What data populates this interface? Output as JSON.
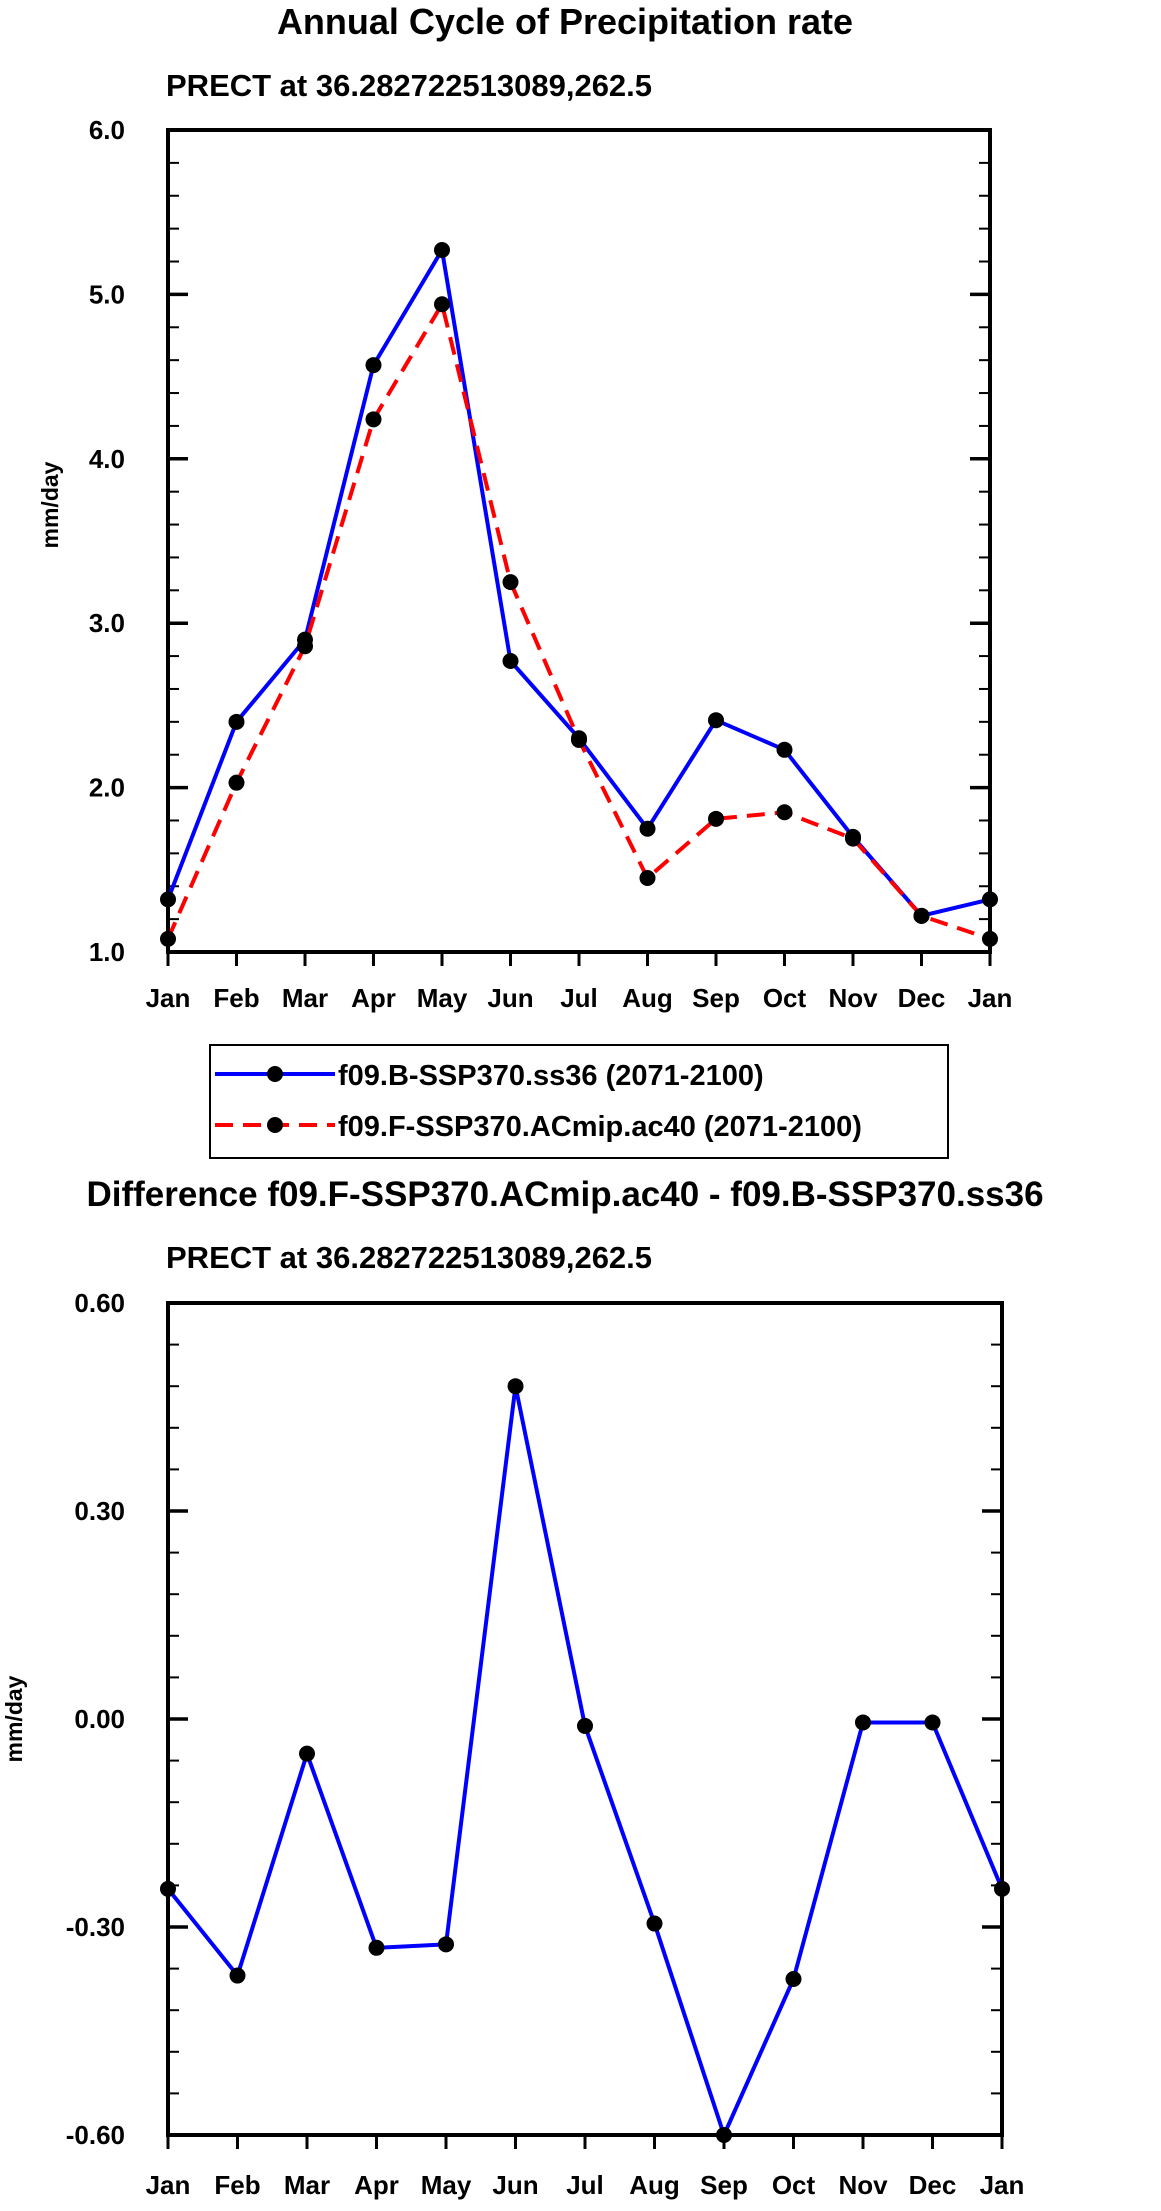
{
  "chart_data": [
    {
      "type": "line",
      "title": "Annual Cycle of Precipitation rate",
      "subtitle": "PRECT at 36.282722513089,262.5",
      "xlabel": "",
      "ylabel": "mm/day",
      "categories": [
        "Jan",
        "Feb",
        "Mar",
        "Apr",
        "May",
        "Jun",
        "Jul",
        "Aug",
        "Sep",
        "Oct",
        "Nov",
        "Dec",
        "Jan"
      ],
      "ylim": [
        1.0,
        6.0
      ],
      "yticks": [
        1.0,
        2.0,
        3.0,
        4.0,
        5.0,
        6.0
      ],
      "ytick_labels": [
        "1.0",
        "2.0",
        "3.0",
        "4.0",
        "5.0",
        "6.0"
      ],
      "grid": false,
      "legend_position": "bottom",
      "series": [
        {
          "name": "f09.B-SSP370.ss36 (2071-2100)",
          "color": "#0000ff",
          "dash": "solid",
          "values": [
            1.32,
            2.4,
            2.9,
            4.57,
            5.27,
            2.77,
            2.3,
            1.75,
            2.41,
            2.23,
            1.7,
            1.22,
            1.32
          ]
        },
        {
          "name": "f09.F-SSP370.ACmip.ac40 (2071-2100)",
          "color": "#ff0000",
          "dash": "dashed",
          "values": [
            1.08,
            2.03,
            2.86,
            4.24,
            4.94,
            3.25,
            2.29,
            1.45,
            1.81,
            1.85,
            1.69,
            1.22,
            1.08
          ]
        }
      ]
    },
    {
      "type": "line",
      "title": "Difference f09.F-SSP370.ACmip.ac40 - f09.B-SSP370.ss36",
      "subtitle": "PRECT at 36.282722513089,262.5",
      "xlabel": "",
      "ylabel": "mm/day",
      "categories": [
        "Jan",
        "Feb",
        "Mar",
        "Apr",
        "May",
        "Jun",
        "Jul",
        "Aug",
        "Sep",
        "Oct",
        "Nov",
        "Dec",
        "Jan"
      ],
      "ylim": [
        -0.6,
        0.6
      ],
      "yticks": [
        -0.6,
        -0.3,
        0.0,
        0.3,
        0.6
      ],
      "ytick_labels": [
        "-0.60",
        "-0.30",
        "0.00",
        "0.30",
        "0.60"
      ],
      "grid": false,
      "series": [
        {
          "name": "Difference",
          "color": "#0000ff",
          "dash": "solid",
          "values": [
            -0.245,
            -0.37,
            -0.05,
            -0.33,
            -0.325,
            0.48,
            -0.01,
            -0.295,
            -0.6,
            -0.375,
            -0.005,
            -0.005,
            -0.245
          ]
        }
      ]
    }
  ]
}
